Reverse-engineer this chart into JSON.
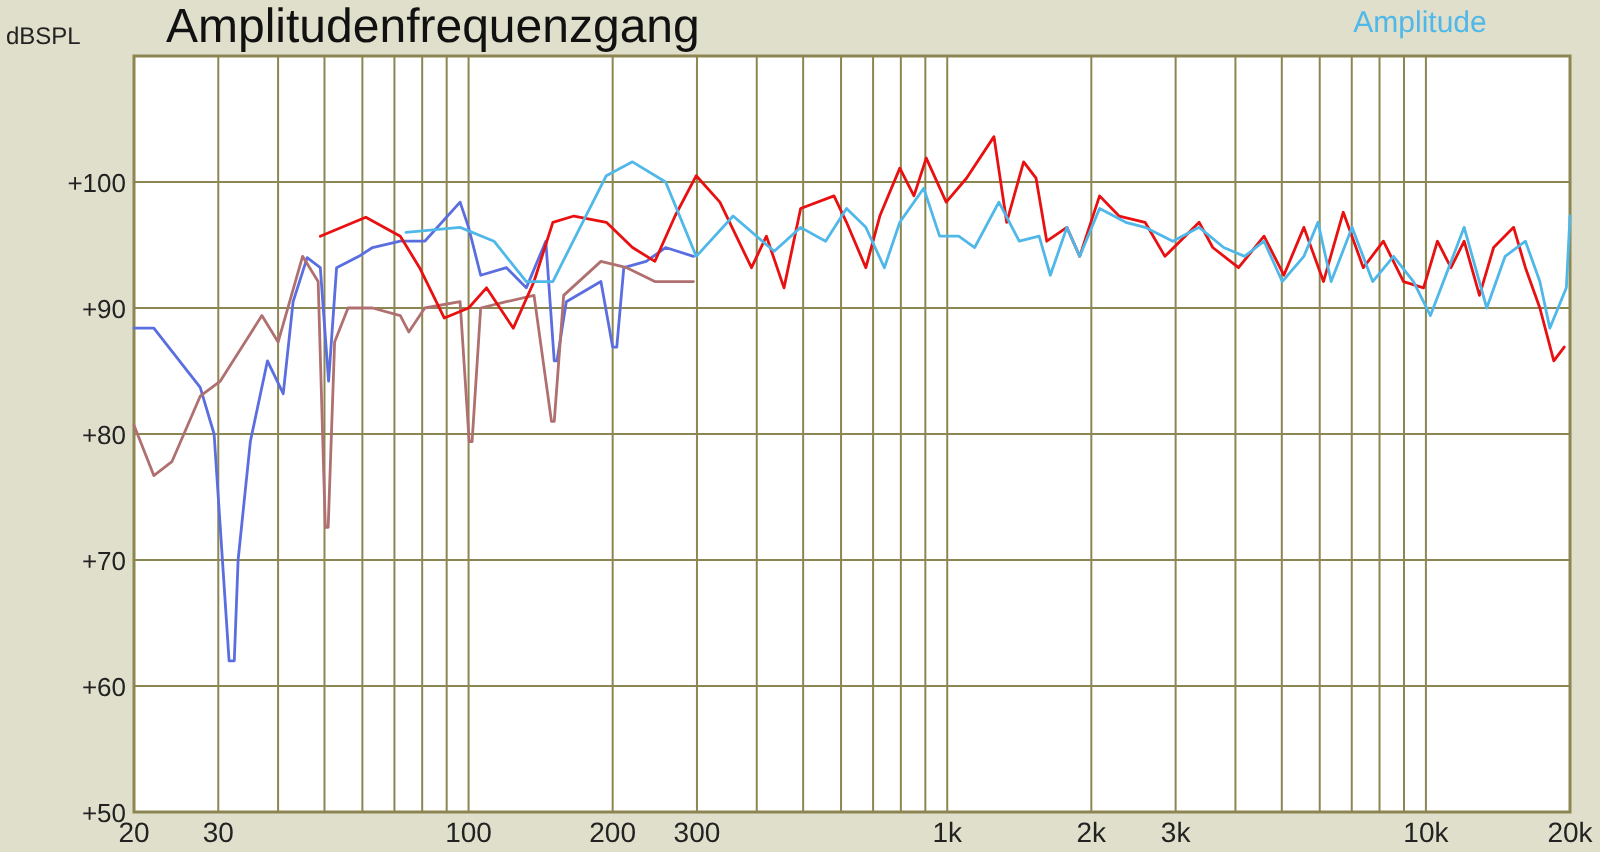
{
  "chart_data": {
    "type": "line",
    "title": "Amplitudenfrequenzgang",
    "ylabel": "dBSPL",
    "log": "x",
    "grid": true,
    "legend": "top right",
    "xlim": [
      20,
      20000
    ],
    "ylim": [
      50,
      110
    ],
    "xticks": [
      20,
      30,
      {
        "value": 40,
        "label": null
      },
      {
        "value": 50,
        "label": null
      },
      {
        "value": 60,
        "label": null
      },
      {
        "value": 70,
        "label": null
      },
      {
        "value": 80,
        "label": null
      },
      {
        "value": 90,
        "label": null
      },
      100,
      200,
      300,
      {
        "value": 400,
        "label": null
      },
      {
        "value": 500,
        "label": null
      },
      {
        "value": 600,
        "label": null
      },
      {
        "value": 700,
        "label": null
      },
      {
        "value": 800,
        "label": null
      },
      {
        "value": 900,
        "label": null
      },
      {
        "value": 1000,
        "label": "1k"
      },
      {
        "value": 2000,
        "label": "2k"
      },
      {
        "value": 3000,
        "label": "3k"
      },
      {
        "value": 4000,
        "label": null
      },
      {
        "value": 5000,
        "label": null
      },
      {
        "value": 6000,
        "label": null
      },
      {
        "value": 7000,
        "label": null
      },
      {
        "value": 8000,
        "label": null
      },
      {
        "value": 9000,
        "label": null
      },
      {
        "value": 10000,
        "label": "10k"
      },
      {
        "value": 20000,
        "label": "20k"
      }
    ],
    "yticks": [
      {
        "value": 50,
        "label": "+50"
      },
      {
        "value": 60,
        "label": "+60"
      },
      {
        "value": 70,
        "label": "+70"
      },
      {
        "value": 80,
        "label": "+80"
      },
      {
        "value": 90,
        "label": "+90"
      },
      {
        "value": 100,
        "label": "+100"
      }
    ],
    "series": [
      {
        "color": "#5a6ee0",
        "x": [
          20,
          22,
          27.5,
          29.4,
          31.6,
          32.4,
          33,
          35,
          38,
          41,
          43,
          46,
          49,
          51,
          53,
          59,
          63,
          72,
          81,
          96,
          100,
          106,
          120,
          132,
          145,
          151,
          153,
          160,
          189,
          200,
          204,
          211,
          235,
          258,
          295
        ],
        "values": [
          88.4,
          88.4,
          83.7,
          80,
          62,
          62,
          70,
          79.4,
          85.8,
          83.2,
          90.5,
          94,
          93.2,
          84.2,
          93.2,
          94.1,
          94.8,
          95.3,
          95.3,
          98.4,
          96.4,
          92.6,
          93.2,
          91.6,
          95.3,
          85.8,
          85.8,
          90.5,
          92.1,
          86.9,
          86.9,
          93.2,
          93.7,
          94.8,
          94.1
        ]
      },
      {
        "color": "#b07070",
        "x": [
          20,
          22,
          24,
          27.5,
          30.3,
          37,
          40,
          45,
          48.5,
          50.2,
          50.9,
          52.5,
          56,
          63,
          72,
          75,
          81,
          96,
          100.3,
          101.7,
          106,
          120,
          137,
          149,
          151,
          158,
          189,
          214,
          245,
          295
        ],
        "values": [
          80.7,
          76.7,
          77.8,
          83,
          84.2,
          89.4,
          87.3,
          94.1,
          92.1,
          72.6,
          72.6,
          87.3,
          90,
          90,
          89.4,
          88.1,
          90,
          90.5,
          79.4,
          79.4,
          90,
          90.5,
          91,
          81,
          81,
          91,
          93.7,
          93.2,
          92.1,
          92.1
        ]
      },
      {
        "color": "#e81010",
        "x": [
          49,
          61,
          72,
          79,
          89,
          100,
          109,
          124,
          137,
          150,
          166,
          194,
          220,
          245,
          270,
          299,
          335,
          390,
          419,
          456,
          494,
          580,
          616,
          676,
          723,
          796,
          852,
          904,
          995,
          1097,
          1252,
          1331,
          1444,
          1533,
          1614,
          1778,
          1891,
          2081,
          2285,
          2590,
          2850,
          3360,
          3587,
          4060,
          4590,
          5050,
          5560,
          6110,
          6720,
          7400,
          8150,
          8980,
          9890,
          10570,
          11280,
          12020,
          12940,
          13850,
          15250,
          16140,
          17300,
          18500,
          19450
        ],
        "values": [
          95.7,
          97.2,
          95.7,
          93.2,
          89.2,
          90,
          91.6,
          88.4,
          92.1,
          96.8,
          97.3,
          96.8,
          94.8,
          93.7,
          97.3,
          100.5,
          98.4,
          93.2,
          95.7,
          91.6,
          97.9,
          98.9,
          96.8,
          93.2,
          97.3,
          101.1,
          98.9,
          101.9,
          98.4,
          100.3,
          103.6,
          96.8,
          101.6,
          100.3,
          95.3,
          96.4,
          94.1,
          98.9,
          97.3,
          96.8,
          94.1,
          96.8,
          94.8,
          93.2,
          95.7,
          92.6,
          96.4,
          92.1,
          97.6,
          93.2,
          95.3,
          92.1,
          91.6,
          95.3,
          93.2,
          95.3,
          91,
          94.8,
          96.4,
          93.2,
          90,
          85.8,
          86.9
        ]
      },
      {
        "name": "Amplitude",
        "color": "#50b8e8",
        "x": [
          74,
          96,
          113,
          132,
          150,
          171,
          194,
          220,
          258,
          299,
          357,
          435,
          494,
          557,
          616,
          676,
          739,
          796,
          893,
          964,
          1057,
          1141,
          1282,
          1414,
          1556,
          1642,
          1778,
          1891,
          2081,
          2360,
          2590,
          2960,
          3360,
          3780,
          4180,
          4590,
          5010,
          5560,
          5950,
          6340,
          7010,
          7740,
          8560,
          9420,
          10220,
          12020,
          13400,
          14640,
          16140,
          17300,
          18150,
          19650,
          20000
        ],
        "values": [
          96,
          96.4,
          95.3,
          92.1,
          92.1,
          96.4,
          100.5,
          101.6,
          100,
          94.1,
          97.3,
          94.5,
          96.4,
          95.3,
          97.9,
          96.4,
          93.2,
          96.8,
          99.5,
          95.7,
          95.7,
          94.8,
          98.4,
          95.3,
          95.7,
          92.6,
          96.4,
          94.1,
          97.9,
          96.8,
          96.4,
          95.3,
          96.4,
          94.8,
          94.1,
          95.3,
          92.1,
          94.1,
          96.8,
          92.1,
          96.4,
          92.1,
          94.1,
          92.1,
          89.4,
          96.4,
          90,
          94.1,
          95.3,
          92.1,
          88.4,
          91.6,
          97.3
        ]
      }
    ]
  }
}
